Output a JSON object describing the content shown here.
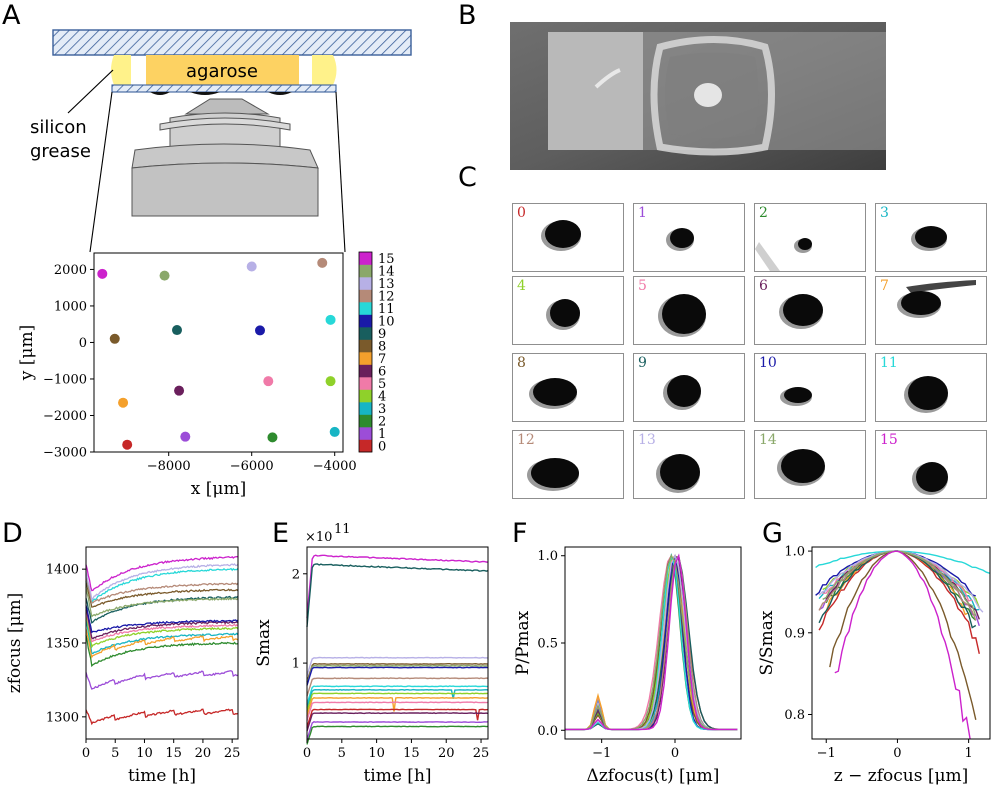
{
  "panels": {
    "a": "A",
    "b": "B",
    "c": "C",
    "d": "D",
    "e": "E",
    "f": "F",
    "g": "G"
  },
  "schematic": {
    "agarose_label": "agarose",
    "grease_label_line1": "silicon",
    "grease_label_line2": "grease"
  },
  "thumbnails": {
    "labels": [
      "0",
      "1",
      "2",
      "3",
      "4",
      "5",
      "6",
      "7",
      "8",
      "9",
      "10",
      "11",
      "12",
      "13",
      "14",
      "15"
    ],
    "colors": [
      "#c62828",
      "#9c4dd8",
      "#2e8b2e",
      "#17b5c4",
      "#8fd12a",
      "#f07aa8",
      "#6a1f5c",
      "#f4a02c",
      "#7a5a2b",
      "#185e5e",
      "#1a1aa8",
      "#27d8d8",
      "#b58a78",
      "#b7b0e6",
      "#8aa86a",
      "#cc22cc"
    ]
  },
  "chart_data": [
    {
      "panel": "A",
      "type": "scatter",
      "xlabel": "x [μm]",
      "ylabel": "y [μm]",
      "xlim": [
        -9800,
        -3800
      ],
      "ylim": [
        -3000,
        2450
      ],
      "xticks": [
        -8000,
        -6000,
        -4000
      ],
      "yticks": [
        -3000,
        -2000,
        -1000,
        0,
        1000,
        2000
      ],
      "colorbar_ticks": [
        "0",
        "1",
        "2",
        "3",
        "4",
        "5",
        "6",
        "7",
        "8",
        "9",
        "10",
        "11",
        "12",
        "13",
        "14",
        "15"
      ],
      "points": [
        {
          "id": 0,
          "x": -9000,
          "y": -2800
        },
        {
          "id": 1,
          "x": -7600,
          "y": -2580
        },
        {
          "id": 2,
          "x": -5500,
          "y": -2600
        },
        {
          "id": 3,
          "x": -4000,
          "y": -2450
        },
        {
          "id": 4,
          "x": -4100,
          "y": -1060
        },
        {
          "id": 5,
          "x": -5600,
          "y": -1060
        },
        {
          "id": 6,
          "x": -7750,
          "y": -1320
        },
        {
          "id": 7,
          "x": -9100,
          "y": -1650
        },
        {
          "id": 8,
          "x": -9300,
          "y": 100
        },
        {
          "id": 9,
          "x": -7800,
          "y": 340
        },
        {
          "id": 10,
          "x": -5800,
          "y": 330
        },
        {
          "id": 11,
          "x": -4100,
          "y": 620
        },
        {
          "id": 12,
          "x": -4300,
          "y": 2180
        },
        {
          "id": 13,
          "x": -6000,
          "y": 2080
        },
        {
          "id": 14,
          "x": -8100,
          "y": 1830
        },
        {
          "id": 15,
          "x": -9600,
          "y": 1880
        }
      ]
    },
    {
      "panel": "D",
      "type": "line",
      "xlabel": "time [h]",
      "ylabel": "zfocus [μm]",
      "xlim": [
        0,
        26
      ],
      "ylim": [
        1285,
        1415
      ],
      "xticks": [
        0,
        5,
        10,
        15,
        20,
        25
      ],
      "yticks": [
        1300,
        1350,
        1400
      ],
      "series": [
        {
          "id": 0,
          "start": 1305,
          "base": 1295,
          "end": 1302
        },
        {
          "id": 1,
          "start": 1330,
          "base": 1318,
          "end": 1328
        },
        {
          "id": 2,
          "start": 1355,
          "base": 1335,
          "end": 1350
        },
        {
          "id": 3,
          "start": 1366,
          "base": 1343,
          "end": 1356
        },
        {
          "id": 4,
          "start": 1370,
          "base": 1348,
          "end": 1360
        },
        {
          "id": 5,
          "start": 1372,
          "base": 1351,
          "end": 1362
        },
        {
          "id": 6,
          "start": 1375,
          "base": 1353,
          "end": 1364
        },
        {
          "id": 7,
          "start": 1360,
          "base": 1340,
          "end": 1352
        },
        {
          "id": 8,
          "start": 1392,
          "base": 1374,
          "end": 1386
        },
        {
          "id": 9,
          "start": 1380,
          "base": 1364,
          "end": 1381
        },
        {
          "id": 10,
          "start": 1376,
          "base": 1357,
          "end": 1365
        },
        {
          "id": 11,
          "start": 1395,
          "base": 1378,
          "end": 1400
        },
        {
          "id": 12,
          "start": 1396,
          "base": 1377,
          "end": 1390
        },
        {
          "id": 13,
          "start": 1398,
          "base": 1380,
          "end": 1403
        },
        {
          "id": 14,
          "start": 1388,
          "base": 1368,
          "end": 1380
        },
        {
          "id": 15,
          "start": 1403,
          "base": 1385,
          "end": 1408
        }
      ]
    },
    {
      "panel": "E",
      "type": "line",
      "xlabel": "time [h]",
      "ylabel": "Smax",
      "exponent_label": "×10",
      "exponent_power": "11",
      "xlim": [
        0,
        26
      ],
      "ylim": [
        0.15,
        2.3
      ],
      "xticks": [
        0,
        5,
        10,
        15,
        20,
        25
      ],
      "yticks": [
        1,
        2
      ],
      "series": [
        {
          "id": 15,
          "level": 2.17
        },
        {
          "id": 9,
          "level": 2.07
        },
        {
          "id": 13,
          "level": 1.06
        },
        {
          "id": 8,
          "level": 0.99
        },
        {
          "id": 14,
          "level": 0.97
        },
        {
          "id": 10,
          "level": 0.95
        },
        {
          "id": 12,
          "level": 0.83
        },
        {
          "id": 11,
          "level": 0.74
        },
        {
          "id": 3,
          "level": 0.7
        },
        {
          "id": 4,
          "level": 0.66
        },
        {
          "id": 7,
          "level": 0.61
        },
        {
          "id": 5,
          "level": 0.56
        },
        {
          "id": 0,
          "level": 0.48
        },
        {
          "id": 6,
          "level": 0.44
        },
        {
          "id": 1,
          "level": 0.34
        },
        {
          "id": 2,
          "level": 0.29
        }
      ]
    },
    {
      "panel": "F",
      "type": "line",
      "xlabel": "Δzfocus(t) [μm]",
      "ylabel": "P/Pmax",
      "xlim": [
        -1.5,
        0.9
      ],
      "ylim": [
        -0.05,
        1.05
      ],
      "xticks": [
        -1,
        0
      ],
      "yticks": [
        0.0,
        0.5,
        1.0
      ]
    },
    {
      "panel": "G",
      "type": "line",
      "xlabel": "z − zfocus [μm]",
      "ylabel": "S/Smax",
      "xlim": [
        -1.2,
        1.3
      ],
      "ylim": [
        0.77,
        1.005
      ],
      "xticks": [
        -1,
        0,
        1
      ],
      "yticks": [
        0.8,
        0.9,
        1.0
      ]
    }
  ],
  "tick_text": {
    "a_x": [
      "−8000",
      "−6000",
      "−4000"
    ],
    "a_y": [
      "−3000",
      "−2000",
      "−1000",
      "0",
      "1000",
      "2000"
    ],
    "d_y": [
      "1300",
      "1350",
      "1400"
    ],
    "time_x": [
      "0",
      "5",
      "10",
      "15",
      "20",
      "25"
    ],
    "e_y": [
      "1",
      "2"
    ],
    "f_x": [
      "−1",
      "0"
    ],
    "f_y": [
      "0.0",
      "0.5",
      "1.0"
    ],
    "g_x": [
      "−1",
      "0",
      "1"
    ],
    "g_y": [
      "0.8",
      "0.9",
      "1.0"
    ]
  }
}
